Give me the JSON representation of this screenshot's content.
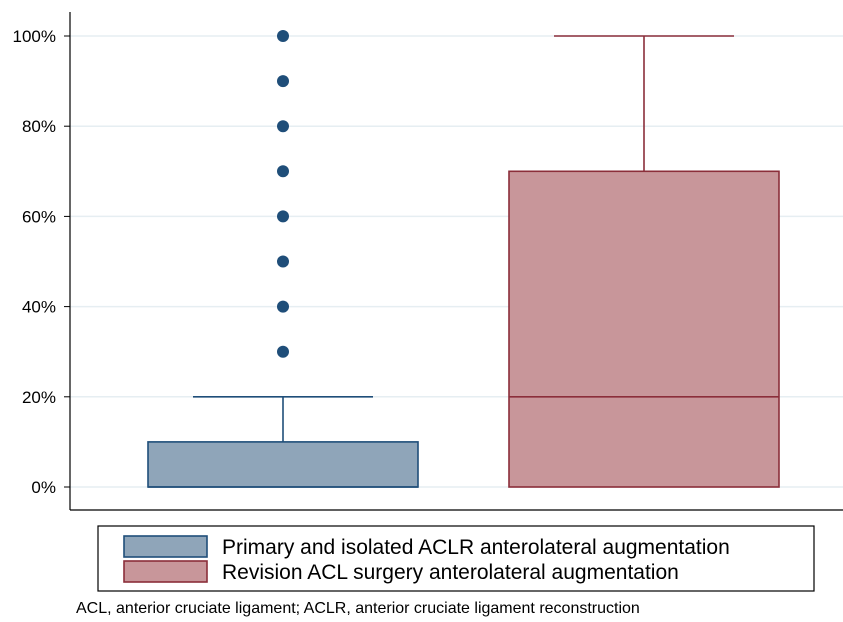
{
  "chart_data": {
    "type": "box",
    "title": "",
    "xlabel": "",
    "ylabel": "",
    "ylim": [
      0,
      100
    ],
    "y_ticks": [
      {
        "value": 0,
        "label": "0%"
      },
      {
        "value": 20,
        "label": "20%"
      },
      {
        "value": 40,
        "label": "40%"
      },
      {
        "value": 60,
        "label": "60%"
      },
      {
        "value": 80,
        "label": "80%"
      },
      {
        "value": 100,
        "label": "100%"
      }
    ],
    "grid": true,
    "legend_position": "bottom",
    "series": [
      {
        "name": "Primary and isolated ACLR anterolateral augmentation",
        "fill": "#8fa5b9",
        "stroke": "#1f4e79",
        "min": 0,
        "q1": 0,
        "median": 0,
        "q3": 10,
        "max": 20,
        "outliers": [
          30,
          40,
          50,
          60,
          70,
          80,
          90,
          100
        ]
      },
      {
        "name": "Revision ACL surgery anterolateral augmentation",
        "fill": "#c8969a",
        "stroke": "#8b2e3a",
        "min": 0,
        "q1": 0,
        "median": 20,
        "q3": 70,
        "max": 100,
        "outliers": []
      }
    ]
  },
  "footnote": "ACL, anterior cruciate ligament; ACLR, anterior cruciate ligament reconstruction"
}
